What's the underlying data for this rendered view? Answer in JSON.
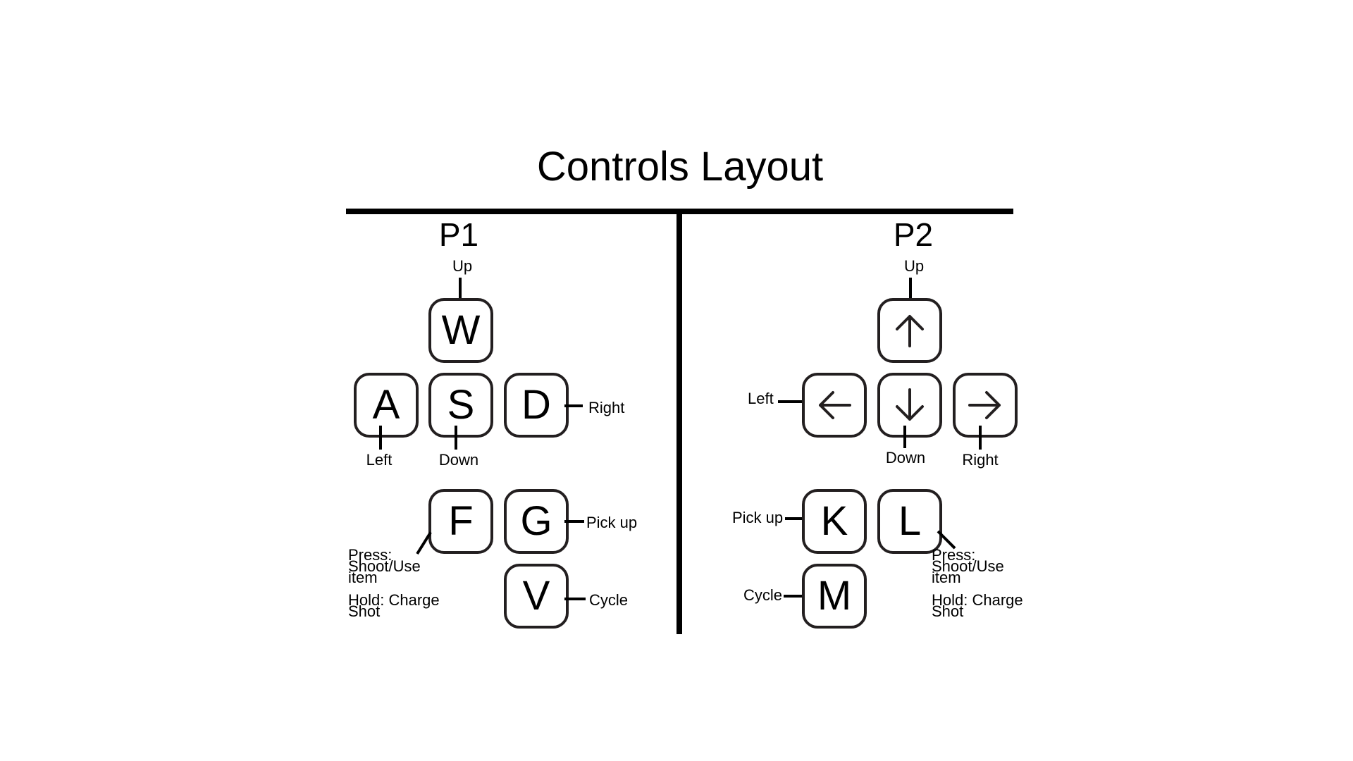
{
  "title": "Controls Layout",
  "p1": {
    "label": "P1",
    "keys": {
      "up": "W",
      "left": "A",
      "down": "S",
      "right": "D",
      "shoot": "F",
      "pickup": "G",
      "cycle": "V"
    },
    "labels": {
      "up": "Up",
      "left": "Left",
      "down": "Down",
      "right": "Right",
      "pickup": "Pick up",
      "cycle": "Cycle",
      "shoot_press_line1": "Press:",
      "shoot_press_line2": "Shoot/Use",
      "shoot_press_line3": "item",
      "shoot_hold_line1": "Hold: Charge",
      "shoot_hold_line2": "Shot"
    }
  },
  "p2": {
    "label": "P2",
    "keys": {
      "up": "up-arrow-icon",
      "left": "left-arrow-icon",
      "down": "down-arrow-icon",
      "right": "right-arrow-icon",
      "pickup": "K",
      "shoot": "L",
      "cycle": "M"
    },
    "labels": {
      "up": "Up",
      "left": "Left",
      "down": "Down",
      "right": "Right",
      "pickup": "Pick up",
      "cycle": "Cycle",
      "shoot_press_line1": "Press:",
      "shoot_press_line2": "Shoot/Use",
      "shoot_press_line3": "item",
      "shoot_hold_line1": "Hold: Charge",
      "shoot_hold_line2": "Shot"
    }
  }
}
